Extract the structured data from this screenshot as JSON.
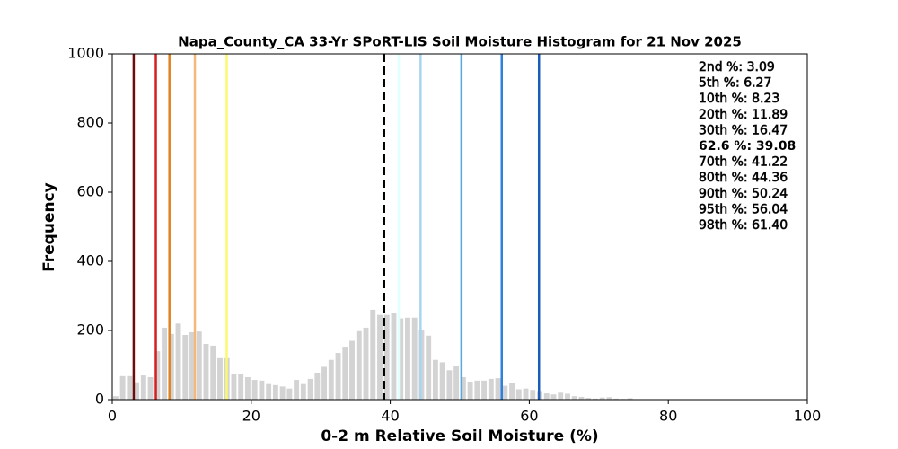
{
  "chart_data": {
    "type": "histogram",
    "title": "Napa_County_CA 33-Yr SPoRT-LIS Soil Moisture Histogram for 21 Nov 2025",
    "x_label": "0-2 m Relative Soil Moisture (%)",
    "y_label": "Frequency",
    "bins": [
      0,
      1,
      2,
      3,
      4,
      5,
      6,
      7,
      8,
      9,
      10,
      11,
      12,
      13,
      14,
      15,
      16,
      17,
      18,
      19,
      20,
      21,
      22,
      23,
      24,
      25,
      26,
      27,
      28,
      29,
      30,
      31,
      32,
      33,
      34,
      35,
      36,
      37,
      38,
      39,
      40,
      41,
      42,
      43,
      44,
      45,
      46,
      47,
      48,
      49,
      50,
      51,
      52,
      53,
      54,
      55,
      56,
      57,
      58,
      59,
      60,
      61,
      62,
      63,
      64,
      65,
      66,
      67,
      68,
      69,
      70,
      71,
      72,
      73,
      74,
      75,
      76
    ],
    "values": [
      10,
      68,
      68,
      50,
      70,
      65,
      140,
      208,
      190,
      220,
      187,
      195,
      197,
      161,
      156,
      120,
      120,
      75,
      73,
      65,
      57,
      55,
      45,
      42,
      38,
      32,
      57,
      45,
      60,
      78,
      95,
      115,
      135,
      153,
      170,
      198,
      208,
      260,
      245,
      245,
      250,
      235,
      237,
      237,
      200,
      185,
      115,
      108,
      85,
      96,
      65,
      52,
      55,
      55,
      60,
      62,
      40,
      47,
      30,
      32,
      28,
      25,
      18,
      15,
      20,
      17,
      10,
      8,
      5,
      3,
      6,
      7,
      3,
      2,
      4,
      1
    ],
    "color": "#d3d3d3",
    "xlim": [
      0,
      100
    ],
    "xticks": [
      0,
      20,
      40,
      60,
      80,
      100
    ],
    "ylim": [
      0,
      1000
    ],
    "yticks": [
      0,
      200,
      400,
      600,
      800,
      1000
    ],
    "percentile_lines": [
      {
        "label": "2nd %: 3.09",
        "value": 3.09,
        "color": "#6b0d0d"
      },
      {
        "label": "5th %: 6.27",
        "value": 6.27,
        "color": "#d42020"
      },
      {
        "label": "10th %: 8.23",
        "value": 8.23,
        "color": "#e0821e"
      },
      {
        "label": "20th %: 11.89",
        "value": 11.89,
        "color": "#f5b87a"
      },
      {
        "label": "30th %: 16.47",
        "value": 16.47,
        "color": "#fafa6e"
      },
      {
        "label": "62.6 %: 39.08",
        "value": 39.08,
        "color": "#000000",
        "dashed": true
      },
      {
        "label": "70th %: 41.22",
        "value": 41.22,
        "color": "#e0ffff"
      },
      {
        "label": "80th %: 44.36",
        "value": 44.36,
        "color": "#a8d4f0"
      },
      {
        "label": "90th %: 50.24",
        "value": 50.24,
        "color": "#5aa8e0"
      },
      {
        "label": "95th %: 56.04",
        "value": 56.04,
        "color": "#2e7fe0"
      },
      {
        "label": "98th %: 61.40",
        "value": 61.4,
        "color": "#1a5cb8"
      }
    ]
  }
}
